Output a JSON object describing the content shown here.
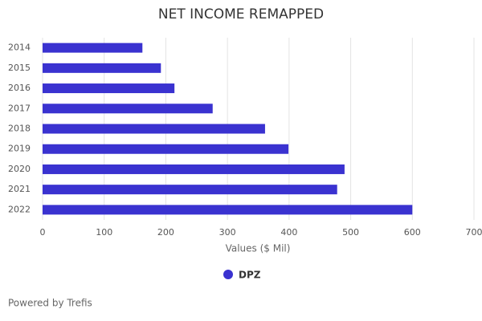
{
  "chart_data": {
    "type": "bar",
    "orientation": "horizontal",
    "title": "NET INCOME REMAPPED",
    "categories": [
      "2014",
      "2015",
      "2016",
      "2017",
      "2018",
      "2019",
      "2020",
      "2021",
      "2022"
    ],
    "series": [
      {
        "name": "DPZ",
        "color": "#3a32d0",
        "values": [
          162,
          192,
          214,
          276,
          361,
          399,
          490,
          478,
          600
        ]
      }
    ],
    "xlabel": "Values ($ Mil)",
    "xlim": [
      0,
      700
    ],
    "xticks": [
      0,
      100,
      200,
      300,
      400,
      500,
      600,
      700
    ],
    "grid": true,
    "credit": "Powered by Trefis"
  }
}
